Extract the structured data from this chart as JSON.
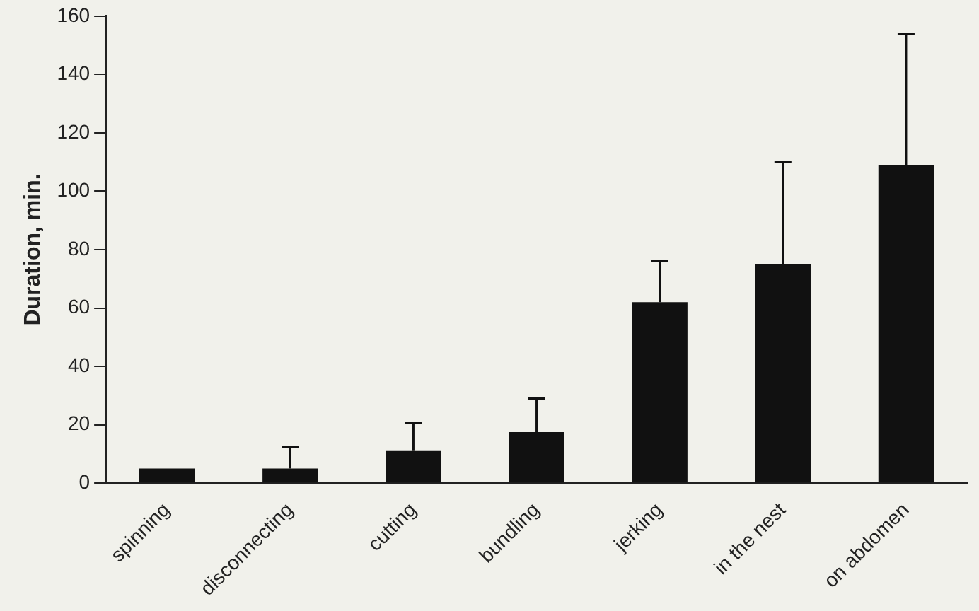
{
  "chart_data": {
    "type": "bar",
    "ylabel": "Duration, min.",
    "categories": [
      "spinning",
      "disconnecting",
      "cutting",
      "bundling",
      "jerking",
      "in the nest",
      "on abdomen"
    ],
    "values": [
      5,
      5,
      11,
      17.5,
      62,
      75,
      109
    ],
    "errors": [
      null,
      [
        5,
        12.5
      ],
      [
        11,
        20.5
      ],
      [
        17.5,
        29
      ],
      [
        62,
        76
      ],
      [
        75,
        110
      ],
      [
        109,
        154
      ]
    ],
    "color": "#111111",
    "ylim": [
      0,
      160
    ],
    "yticks": [
      0,
      20,
      40,
      60,
      80,
      100,
      120,
      140,
      160
    ],
    "grid": false,
    "legend": false
  }
}
